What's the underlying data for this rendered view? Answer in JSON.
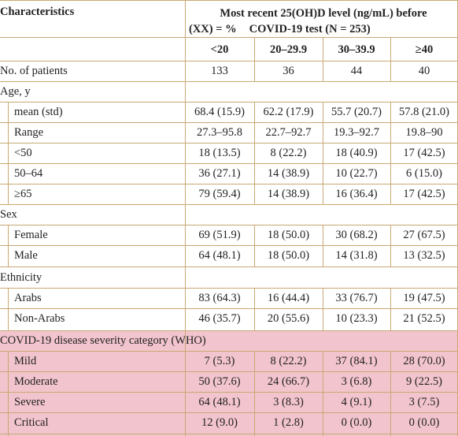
{
  "header": {
    "characteristics": "Characteristics",
    "title_line1": "Most recent 25(OH)D level (ng/mL) before",
    "title_line2a": "(XX) = %",
    "title_line2b": "COVID-19 test (N = 253)",
    "columns": [
      "<20",
      "20–29.9",
      "30–39.9",
      "≥40"
    ]
  },
  "rows": {
    "patients": {
      "label": "No. of patients",
      "values": [
        "133",
        "36",
        "44",
        "40"
      ]
    },
    "age": {
      "label": "Age, y"
    },
    "mean": {
      "label": "mean (std)",
      "values": [
        "68.4 (15.9)",
        "62.2 (17.9)",
        "55.7 (20.7)",
        "57.8 (21.0)"
      ]
    },
    "range": {
      "label": "Range",
      "values": [
        "27.3–95.8",
        "22.7–92.7",
        "19.3–92.7",
        "19.8–90"
      ]
    },
    "lt50": {
      "label": "<50",
      "values": [
        "18 (13.5)",
        "8 (22.2)",
        "18 (40.9)",
        "17 (42.5)"
      ]
    },
    "a5064": {
      "label": "50–64",
      "values": [
        "36 (27.1)",
        "14 (38.9)",
        "10 (22.7)",
        "6 (15.0)"
      ]
    },
    "ge65": {
      "label": "≥65",
      "values": [
        "79 (59.4)",
        "14 (38.9)",
        "16 (36.4)",
        "17 (42.5)"
      ]
    },
    "sex": {
      "label": "Sex"
    },
    "female": {
      "label": "Female",
      "values": [
        "69 (51.9)",
        "18 (50.0)",
        "30 (68.2)",
        "27 (67.5)"
      ]
    },
    "male": {
      "label": "Male",
      "values": [
        "64 (48.1)",
        "18 (50.0)",
        "14 (31.8)",
        "13 (32.5)"
      ]
    },
    "ethnicity": {
      "label": "Ethnicity"
    },
    "arabs": {
      "label": "Arabs",
      "values": [
        "83 (64.3)",
        "16 (44.4)",
        "33 (76.7)",
        "19 (47.5)"
      ]
    },
    "nonarabs": {
      "label": "Non-Arabs",
      "values": [
        "46 (35.7)",
        "20 (55.6)",
        "10 (23.3)",
        "21 (52.5)"
      ]
    },
    "covid": {
      "label": "COVID-19 disease severity category (WHO)"
    },
    "mild": {
      "label": "Mild",
      "values": [
        "7 (5.3)",
        "8 (22.2)",
        "37 (84.1)",
        "28 (70.0)"
      ]
    },
    "moderate": {
      "label": "Moderate",
      "values": [
        "50 (37.6)",
        "24 (66.7)",
        "3 (6.8)",
        "9 (22.5)"
      ]
    },
    "severe": {
      "label": "Severe",
      "values": [
        "64 (48.1)",
        "3 (8.3)",
        "4 (9.1)",
        "3 (7.5)"
      ]
    },
    "critical": {
      "label": "Critical",
      "values": [
        "12 (9.0)",
        "1 (2.8)",
        "0 (0.0)",
        "0 (0.0)"
      ]
    }
  },
  "colors": {
    "rule": "#c9a873",
    "highlight": "#f2c4cd",
    "text": "#222222"
  }
}
